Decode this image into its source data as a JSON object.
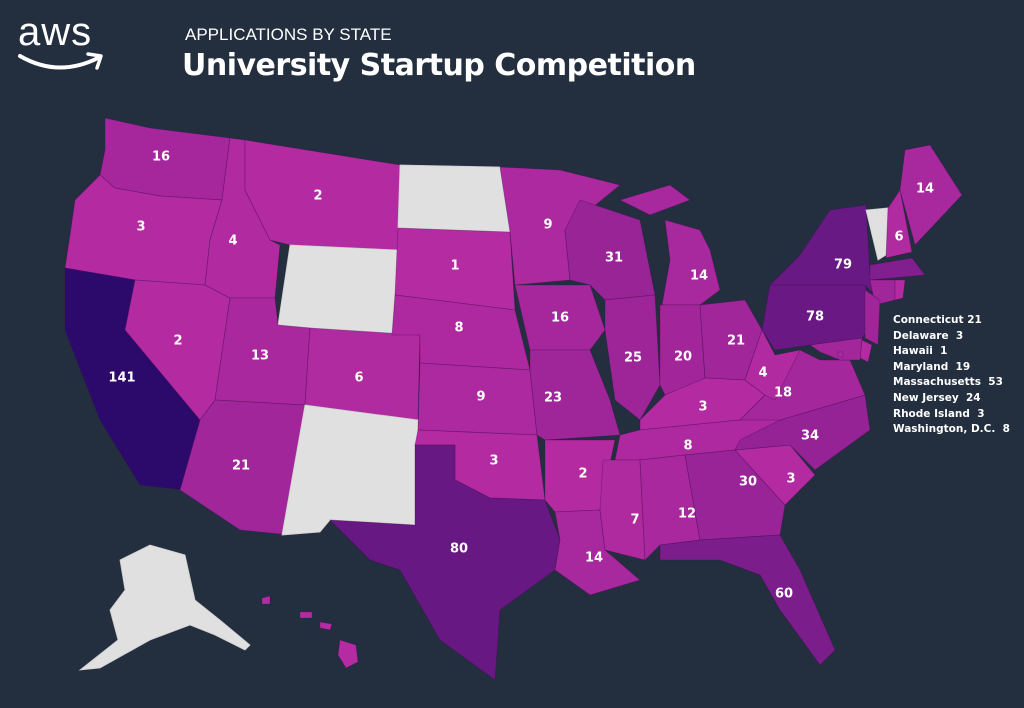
{
  "header": {
    "logo": "aws",
    "subtitle": "APPLICATIONS BY STATE",
    "title": "University Startup Competition"
  },
  "colors": {
    "background": "#232f3e",
    "low": "#b62ba2",
    "high": "#2c0a6c",
    "no_data": "#e0e0e0"
  },
  "map_data": {
    "type": "choropleth",
    "metric": "applications",
    "range": [
      0,
      141
    ],
    "states": {
      "WA": {
        "name": "Washington",
        "value": 16
      },
      "OR": {
        "name": "Oregon",
        "value": 3
      },
      "CA": {
        "name": "California",
        "value": 141
      },
      "NV": {
        "name": "Nevada",
        "value": 2
      },
      "ID": {
        "name": "Idaho",
        "value": 4
      },
      "MT": {
        "name": "Montana",
        "value": 2
      },
      "WY": {
        "name": "Wyoming",
        "value": null
      },
      "UT": {
        "name": "Utah",
        "value": 13
      },
      "CO": {
        "name": "Colorado",
        "value": 6
      },
      "AZ": {
        "name": "Arizona",
        "value": 21
      },
      "NM": {
        "name": "New Mexico",
        "value": null
      },
      "ND": {
        "name": "North Dakota",
        "value": null
      },
      "SD": {
        "name": "South Dakota",
        "value": 1
      },
      "NE": {
        "name": "Nebraska",
        "value": 8
      },
      "KS": {
        "name": "Kansas",
        "value": 9
      },
      "OK": {
        "name": "Oklahoma",
        "value": 3
      },
      "TX": {
        "name": "Texas",
        "value": 80
      },
      "MN": {
        "name": "Minnesota",
        "value": 9
      },
      "IA": {
        "name": "Iowa",
        "value": 16
      },
      "MO": {
        "name": "Missouri",
        "value": 23
      },
      "AR": {
        "name": "Arkansas",
        "value": 2
      },
      "LA": {
        "name": "Louisiana",
        "value": 14
      },
      "WI": {
        "name": "Wisconsin",
        "value": 31
      },
      "IL": {
        "name": "Illinois",
        "value": 25
      },
      "MI": {
        "name": "Michigan",
        "value": 14
      },
      "IN": {
        "name": "Indiana",
        "value": 20
      },
      "OH": {
        "name": "Ohio",
        "value": 21
      },
      "KY": {
        "name": "Kentucky",
        "value": 3
      },
      "TN": {
        "name": "Tennessee",
        "value": 8
      },
      "MS": {
        "name": "Mississippi",
        "value": 7
      },
      "AL": {
        "name": "Alabama",
        "value": 12
      },
      "GA": {
        "name": "Georgia",
        "value": 30
      },
      "FL": {
        "name": "Florida",
        "value": 60
      },
      "SC": {
        "name": "South Carolina",
        "value": 3
      },
      "NC": {
        "name": "North Carolina",
        "value": 34
      },
      "VA": {
        "name": "Virginia",
        "value": 18
      },
      "WV": {
        "name": "West Virginia",
        "value": 4
      },
      "PA": {
        "name": "Pennsylvania",
        "value": 78
      },
      "NY": {
        "name": "New York",
        "value": 79
      },
      "VT": {
        "name": "Vermont",
        "value": null
      },
      "NH": {
        "name": "New Hampshire",
        "value": 6
      },
      "ME": {
        "name": "Maine",
        "value": 14
      },
      "MA": {
        "name": "Massachusetts",
        "value": 53
      },
      "CT": {
        "name": "Connecticut",
        "value": 21
      },
      "RI": {
        "name": "Rhode Island",
        "value": 3
      },
      "NJ": {
        "name": "New Jersey",
        "value": 24
      },
      "DE": {
        "name": "Delaware",
        "value": 3
      },
      "MD": {
        "name": "Maryland",
        "value": 19
      },
      "DC": {
        "name": "Washington, D.C.",
        "value": 8
      },
      "AK": {
        "name": "Alaska",
        "value": null
      },
      "HI": {
        "name": "Hawaii",
        "value": 1
      }
    }
  },
  "legend": [
    "Connecticut 21",
    "Delaware  3",
    "Hawaii  1",
    "Maryland  19",
    "Massachusetts  53",
    "New Jersey  24",
    "Rhode Island  3",
    "Washington, D.C.  8"
  ]
}
